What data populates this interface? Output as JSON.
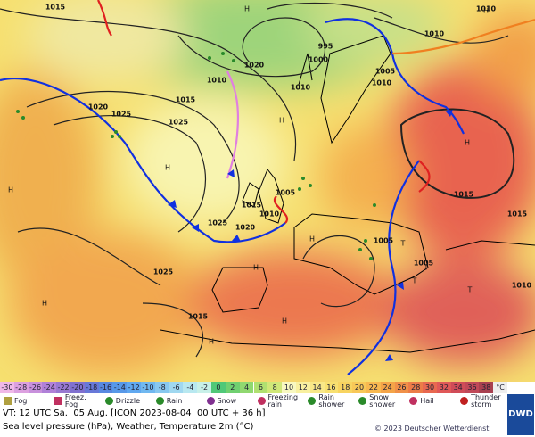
{
  "map": {
    "title_line": "VT: 12 UTC Sa.  05 Aug. [ICON 2023-08-04  00 UTC + 36 h]",
    "subtitle": "Sea level pressure (hPa), Weather, Temperature 2m (°C)",
    "credit": "© 2023 Deutscher Wetterdienst",
    "logo": "DWD",
    "isobar_labels": [
      "1015",
      "1010",
      "1010",
      "995",
      "1000",
      "1020",
      "1010",
      "1010",
      "1005",
      "1020",
      "1025",
      "1025",
      "1010",
      "1015",
      "1005",
      "1015",
      "1010",
      "1025",
      "1020",
      "1005",
      "1005",
      "1015",
      "1025",
      "1015",
      "1010",
      "1015"
    ],
    "pressure_centers": [
      "H",
      "H",
      "H",
      "H",
      "H",
      "H",
      "H",
      "H",
      "H",
      "H",
      "H",
      "T",
      "T",
      "T",
      "T"
    ],
    "temperature_scale": {
      "values": [
        -30,
        -28,
        -26,
        -24,
        -22,
        -20,
        -18,
        -16,
        -14,
        -12,
        -10,
        -8,
        -6,
        -4,
        -2,
        0,
        2,
        4,
        6,
        8,
        10,
        12,
        14,
        16,
        18,
        20,
        22,
        24,
        26,
        28,
        30,
        32,
        34,
        36,
        38
      ],
      "colors": [
        "#f0b8e8",
        "#dca0e0",
        "#c890dc",
        "#b080d8",
        "#9878d0",
        "#8070d0",
        "#6878d8",
        "#5888e0",
        "#5898e8",
        "#60a8f0",
        "#70b8f0",
        "#88c8f0",
        "#a0d8f0",
        "#b8e8f0",
        "#c8f0e8",
        "#50c878",
        "#70d070",
        "#90d870",
        "#b0e070",
        "#d0e878",
        "#f8f8c0",
        "#f8f0a0",
        "#f8e888",
        "#f8e070",
        "#f8d460",
        "#f8c858",
        "#f8b850",
        "#f4a448",
        "#f09048",
        "#ec7c48",
        "#e86850",
        "#e05858",
        "#d04c58",
        "#c04858",
        "#a84050"
      ],
      "unit": "°C"
    },
    "legend": [
      "Fog",
      "Freez. Fog",
      "Drizzle",
      "Rain",
      "Snow",
      "Freezing rain",
      "Rain shower",
      "Snow shower",
      "Hail",
      "Thunder storm"
    ]
  }
}
